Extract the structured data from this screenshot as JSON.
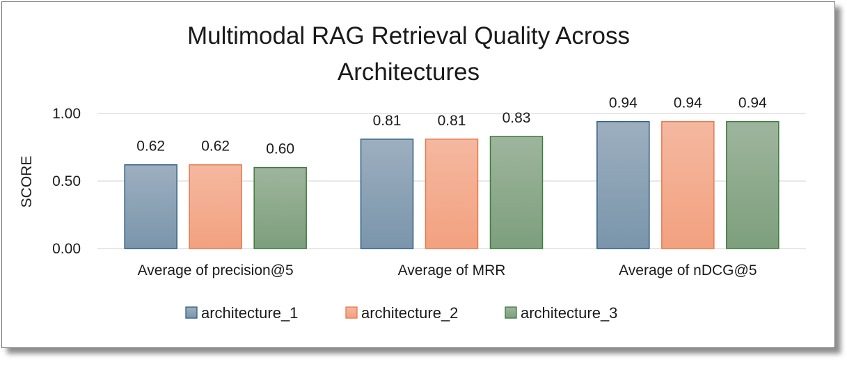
{
  "chart_data": {
    "type": "bar",
    "title": "Multimodal RAG Retrieval Quality Across Architectures",
    "title_lines": [
      "Multimodal RAG Retrieval Quality Across",
      "Architectures"
    ],
    "xlabel": "",
    "ylabel": "SCORE",
    "ylim": [
      0,
      1
    ],
    "yticks": [
      0,
      0.5,
      1
    ],
    "ytick_labels": [
      "0.00",
      "0.50",
      "1.00"
    ],
    "grid": true,
    "legend_position": "bottom",
    "categories": [
      "Average of precision@5",
      "Average of MRR",
      "Average of nDCG@5"
    ],
    "series": [
      {
        "name": "architecture_1",
        "values": [
          0.62,
          0.81,
          0.94
        ],
        "labels": [
          "0.62",
          "0.81",
          "0.94"
        ],
        "color_top": "#9dafbf",
        "color_bottom": "#7a95ab",
        "border": "#2f5f86"
      },
      {
        "name": "architecture_2",
        "values": [
          0.62,
          0.81,
          0.94
        ],
        "labels": [
          "0.62",
          "0.81",
          "0.94"
        ],
        "color_top": "#f4b8a0",
        "color_bottom": "#f3a17f",
        "border": "#e67a4f"
      },
      {
        "name": "architecture_3",
        "values": [
          0.6,
          0.83,
          0.94
        ],
        "labels": [
          "0.60",
          "0.83",
          "0.94"
        ],
        "color_top": "#9eb59d",
        "color_bottom": "#7d9f7c",
        "border": "#3f7a3e"
      }
    ]
  }
}
